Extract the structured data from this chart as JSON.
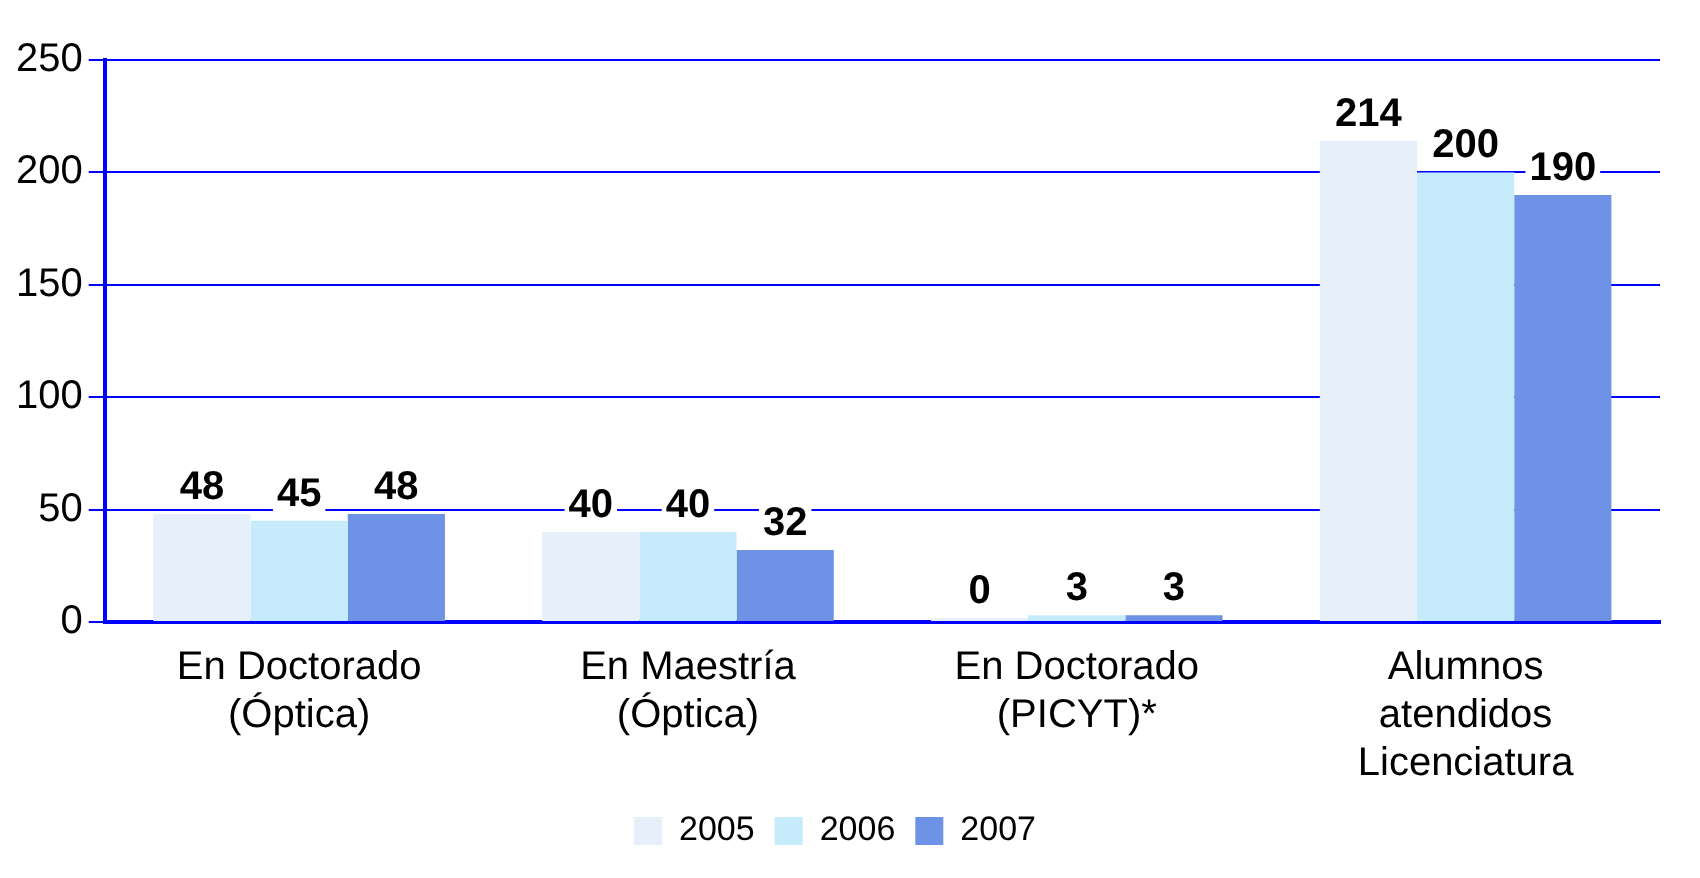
{
  "chart_data": {
    "type": "bar",
    "categories": [
      "En Doctorado\n(Óptica)",
      "En Maestría\n(Óptica)",
      "En Doctorado\n(PICYT)*",
      "Alumnos\natendidos\nLicenciatura"
    ],
    "series": [
      {
        "name": "2005",
        "color": "#e6effa",
        "values": [
          48,
          40,
          0,
          214
        ]
      },
      {
        "name": "2006",
        "color": "#c6ecfb",
        "values": [
          45,
          40,
          3,
          200
        ]
      },
      {
        "name": "2007",
        "color": "#6e93e6",
        "values": [
          48,
          32,
          3,
          190
        ]
      }
    ],
    "ylim": [
      0,
      250
    ],
    "yticks": [
      0,
      50,
      100,
      150,
      200,
      250
    ],
    "grid": "y",
    "legend": "bottom",
    "data_labels": true
  }
}
